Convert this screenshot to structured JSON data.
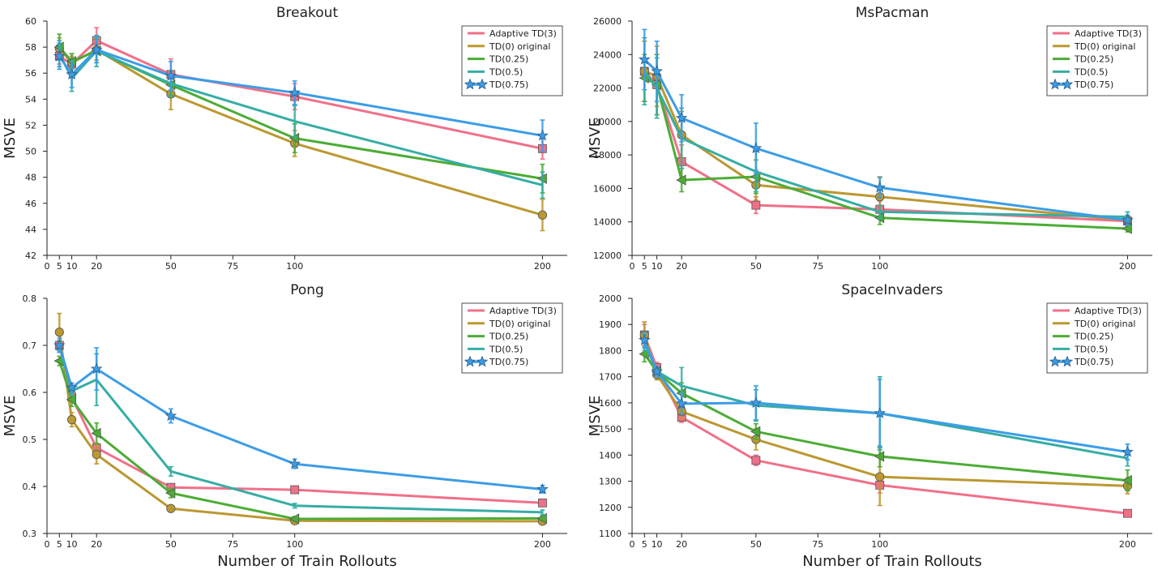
{
  "chart_data": [
    {
      "type": "line",
      "title": "Breakout",
      "xlabel": "",
      "ylabel": "MSVE",
      "xlim": [
        0,
        210
      ],
      "ylim": [
        42,
        60
      ],
      "xticks": [
        0,
        5,
        10,
        20,
        50,
        75,
        100,
        200
      ],
      "yticks": [
        42,
        44,
        46,
        48,
        50,
        52,
        54,
        56,
        58,
        60
      ],
      "legend_position": "top-right",
      "x": [
        5,
        10,
        20,
        50,
        100,
        200
      ],
      "series": [
        {
          "name": "Adaptive TD(3)",
          "color": "#f07089",
          "marker": "square",
          "values": [
            57.3,
            56.7,
            58.5,
            55.9,
            54.2,
            50.2
          ],
          "errors": [
            0.6,
            0.6,
            1.0,
            1.2,
            1.0,
            0.8
          ]
        },
        {
          "name": "TD(0) original",
          "color": "#bb9831",
          "marker": "circle",
          "values": [
            57.9,
            56.8,
            57.8,
            54.4,
            50.6,
            45.1
          ],
          "errors": [
            0.8,
            0.7,
            0.8,
            1.2,
            1.0,
            1.2
          ]
        },
        {
          "name": "TD(0.25)",
          "color": "#4cac36",
          "marker": "triangle-left",
          "values": [
            58.0,
            56.9,
            57.7,
            55.1,
            51.0,
            47.9
          ],
          "errors": [
            1.0,
            0.6,
            0.9,
            0.8,
            1.1,
            1.1
          ]
        },
        {
          "name": "TD(0.5)",
          "color": "#36ada4",
          "marker": "none",
          "values": [
            57.5,
            55.6,
            57.7,
            55.2,
            52.3,
            47.4
          ],
          "errors": [
            1.0,
            1.0,
            1.2,
            1.0,
            1.2,
            1.0
          ]
        },
        {
          "name": "TD(0.75)",
          "color": "#3c9de6",
          "marker": "star",
          "values": [
            57.3,
            55.9,
            57.8,
            55.8,
            54.5,
            51.2
          ],
          "errors": [
            1.0,
            1.0,
            1.0,
            1.1,
            0.9,
            1.2
          ]
        }
      ]
    },
    {
      "type": "line",
      "title": "MsPacman",
      "xlabel": "",
      "ylabel": "MSVE",
      "xlim": [
        0,
        210
      ],
      "ylim": [
        12000,
        26000
      ],
      "xticks": [
        0,
        5,
        10,
        20,
        50,
        75,
        100,
        200
      ],
      "yticks": [
        12000,
        14000,
        16000,
        18000,
        20000,
        22000,
        24000,
        26000
      ],
      "legend_position": "top-right",
      "x": [
        5,
        10,
        20,
        50,
        100,
        200
      ],
      "series": [
        {
          "name": "Adaptive TD(3)",
          "color": "#f07089",
          "marker": "square",
          "values": [
            23000,
            22200,
            17600,
            15000,
            14750,
            14050
          ],
          "errors": [
            1800,
            1800,
            1000,
            500,
            500,
            300
          ]
        },
        {
          "name": "TD(0) original",
          "color": "#bb9831",
          "marker": "circle",
          "values": [
            23000,
            22700,
            19200,
            16200,
            15500,
            14100
          ],
          "errors": [
            1800,
            1800,
            1400,
            900,
            1200,
            300
          ]
        },
        {
          "name": "TD(0.25)",
          "color": "#4cac36",
          "marker": "triangle-left",
          "values": [
            22600,
            22200,
            16500,
            16700,
            14250,
            13600
          ],
          "errors": [
            1400,
            1800,
            700,
            1000,
            400,
            200
          ]
        },
        {
          "name": "TD(0.5)",
          "color": "#36ada4",
          "marker": "none",
          "values": [
            23000,
            22000,
            19000,
            17000,
            14600,
            14300
          ],
          "errors": [
            2000,
            1800,
            1800,
            1200,
            400,
            300
          ]
        },
        {
          "name": "TD(0.75)",
          "color": "#3c9de6",
          "marker": "star",
          "values": [
            23700,
            23000,
            20200,
            18400,
            16050,
            14100
          ],
          "errors": [
            1800,
            1800,
            1400,
            1500,
            600,
            300
          ]
        }
      ]
    },
    {
      "type": "line",
      "title": "Pong",
      "xlabel": "Number of Train Rollouts",
      "ylabel": "MSVE",
      "xlim": [
        0,
        210
      ],
      "ylim": [
        0.3,
        0.8
      ],
      "xticks": [
        0,
        5,
        10,
        20,
        50,
        75,
        100,
        200
      ],
      "yticks": [
        0.3,
        0.4,
        0.5,
        0.6,
        0.7,
        0.8
      ],
      "legend_position": "top-right",
      "x": [
        5,
        10,
        20,
        50,
        100,
        200
      ],
      "series": [
        {
          "name": "Adaptive TD(3)",
          "color": "#f07089",
          "marker": "square",
          "values": [
            0.7,
            0.59,
            0.482,
            0.398,
            0.393,
            0.365
          ],
          "errors": [
            0.01,
            0.01,
            0.01,
            0.006,
            0.005,
            0.005
          ]
        },
        {
          "name": "TD(0) original",
          "color": "#bb9831",
          "marker": "circle",
          "values": [
            0.728,
            0.542,
            0.468,
            0.353,
            0.327,
            0.326
          ],
          "errors": [
            0.04,
            0.015,
            0.02,
            0.006,
            0.005,
            0.005
          ]
        },
        {
          "name": "TD(0.25)",
          "color": "#4cac36",
          "marker": "triangle-left",
          "values": [
            0.667,
            0.585,
            0.513,
            0.386,
            0.331,
            0.332
          ],
          "errors": [
            0.01,
            0.015,
            0.022,
            0.01,
            0.005,
            0.005
          ]
        },
        {
          "name": "TD(0.5)",
          "color": "#36ada4",
          "marker": "none",
          "values": [
            0.7,
            0.603,
            0.627,
            0.432,
            0.359,
            0.345
          ],
          "errors": [
            0.01,
            0.01,
            0.055,
            0.01,
            0.005,
            0.005
          ]
        },
        {
          "name": "TD(0.75)",
          "color": "#3c9de6",
          "marker": "star",
          "values": [
            0.7,
            0.61,
            0.65,
            0.55,
            0.448,
            0.394
          ],
          "errors": [
            0.015,
            0.01,
            0.045,
            0.015,
            0.01,
            0.008
          ]
        }
      ]
    },
    {
      "type": "line",
      "title": "SpaceInvaders",
      "xlabel": "Number of Train Rollouts",
      "ylabel": "MSVE",
      "xlim": [
        0,
        210
      ],
      "ylim": [
        1100,
        2000
      ],
      "xticks": [
        0,
        5,
        10,
        20,
        50,
        75,
        100,
        200
      ],
      "yticks": [
        1100,
        1200,
        1300,
        1400,
        1500,
        1600,
        1700,
        1800,
        1900,
        2000
      ],
      "legend_position": "top-right",
      "x": [
        5,
        10,
        20,
        50,
        100,
        200
      ],
      "series": [
        {
          "name": "Adaptive TD(3)",
          "color": "#f07089",
          "marker": "square",
          "values": [
            1860,
            1735,
            1545,
            1380,
            1285,
            1177
          ],
          "errors": [
            40,
            20,
            20,
            20,
            30,
            10
          ]
        },
        {
          "name": "TD(0) original",
          "color": "#bb9831",
          "marker": "circle",
          "values": [
            1860,
            1708,
            1567,
            1460,
            1317,
            1282
          ],
          "errors": [
            50,
            20,
            30,
            40,
            110,
            30
          ]
        },
        {
          "name": "TD(0.25)",
          "color": "#4cac36",
          "marker": "triangle-left",
          "values": [
            1787,
            1720,
            1637,
            1490,
            1395,
            1303
          ],
          "errors": [
            30,
            20,
            40,
            30,
            40,
            40
          ]
        },
        {
          "name": "TD(0.5)",
          "color": "#36ada4",
          "marker": "none",
          "values": [
            1830,
            1720,
            1665,
            1590,
            1560,
            1388
          ],
          "errors": [
            30,
            20,
            70,
            60,
            140,
            30
          ]
        },
        {
          "name": "TD(0.75)",
          "color": "#3c9de6",
          "marker": "star",
          "values": [
            1840,
            1720,
            1597,
            1600,
            1560,
            1412
          ],
          "errors": [
            30,
            20,
            40,
            65,
            130,
            30
          ]
        }
      ]
    }
  ]
}
